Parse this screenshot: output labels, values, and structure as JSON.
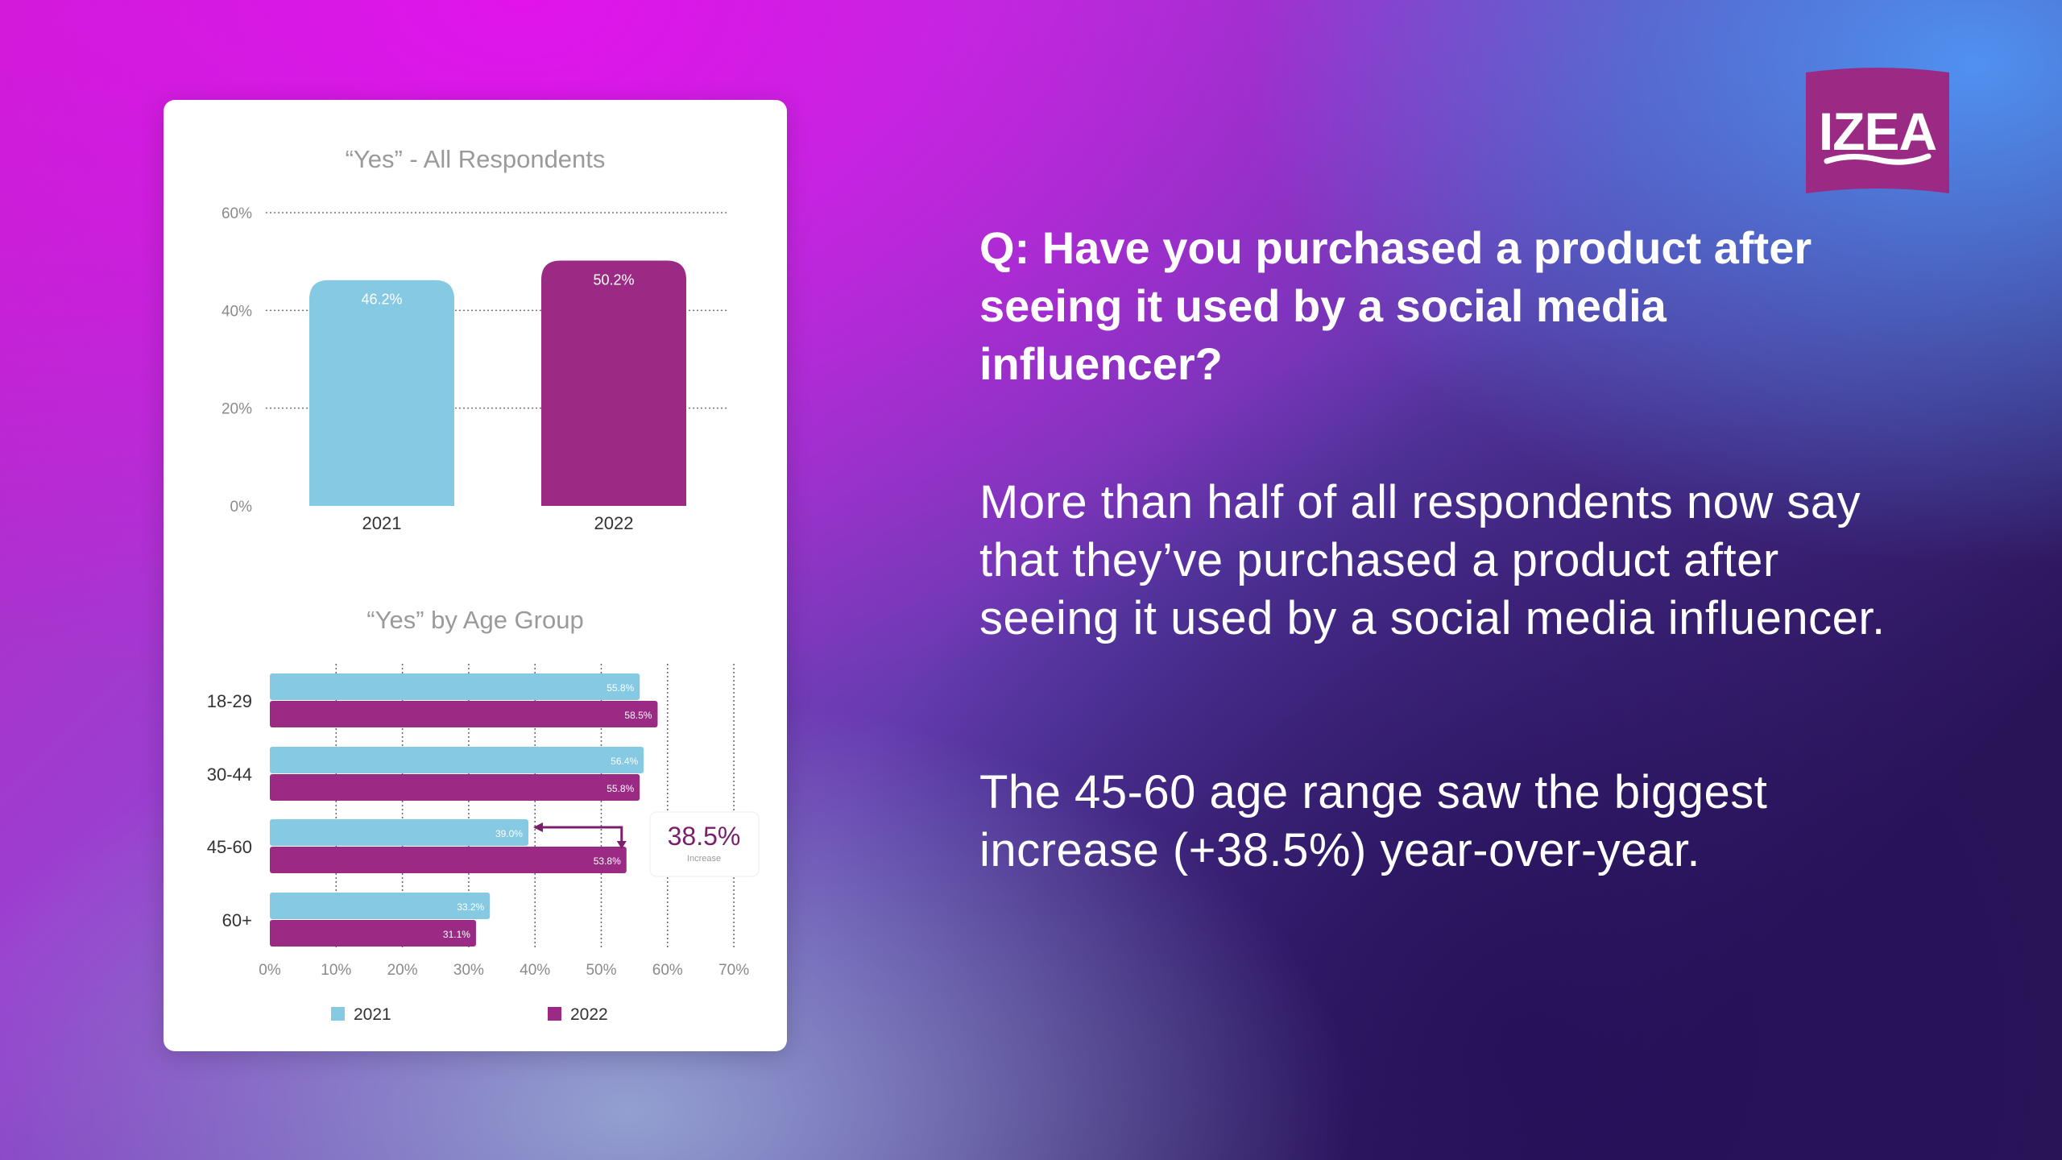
{
  "brand": {
    "logo_text": "IZEA",
    "logo_color": "#9b2a85",
    "color_2021": "#85c9e2",
    "color_2022": "#9b2a85"
  },
  "question": "Q: Have you purchased a product after seeing it used by a social media influencer?",
  "paragraph_1": "More than half of all respondents now say that they’ve purchased a product after seeing it used by a social media influencer.",
  "paragraph_2": "The 45-60 age range saw the biggest increase (+38.5%) year-over-year.",
  "chart_data": [
    {
      "type": "bar",
      "title": "“Yes” - All Respondents",
      "categories": [
        "2021",
        "2022"
      ],
      "values": [
        46.2,
        50.2
      ],
      "data_labels": [
        "46.2%",
        "50.2%"
      ],
      "colors": [
        "#85c9e2",
        "#9b2a85"
      ],
      "ylim": [
        0,
        60
      ],
      "yticks": [
        0,
        20,
        40,
        60
      ],
      "ytick_labels": [
        "0%",
        "20%",
        "40%",
        "60%"
      ],
      "grid": true
    },
    {
      "type": "bar",
      "orientation": "horizontal",
      "title": "“Yes” by Age Group",
      "categories": [
        "18-29",
        "30-44",
        "45-60",
        "60+"
      ],
      "series": [
        {
          "name": "2021",
          "color": "#85c9e2",
          "values": [
            55.8,
            56.4,
            39.0,
            33.2
          ],
          "labels": [
            "55.8%",
            "56.4%",
            "39.0%",
            "33.2%"
          ]
        },
        {
          "name": "2022",
          "color": "#9b2a85",
          "values": [
            58.5,
            55.8,
            53.8,
            31.1
          ],
          "labels": [
            "58.5%",
            "55.8%",
            "53.8%",
            "31.1%"
          ]
        }
      ],
      "xlim": [
        0,
        70
      ],
      "xticks": [
        0,
        10,
        20,
        30,
        40,
        50,
        60,
        70
      ],
      "xtick_labels": [
        "0%",
        "10%",
        "20%",
        "30%",
        "40%",
        "50%",
        "60%",
        "70%"
      ],
      "grid": true,
      "legend_position": "bottom",
      "annotation": {
        "category": "45-60",
        "value": "38.5%",
        "sublabel": "Increase"
      }
    }
  ]
}
